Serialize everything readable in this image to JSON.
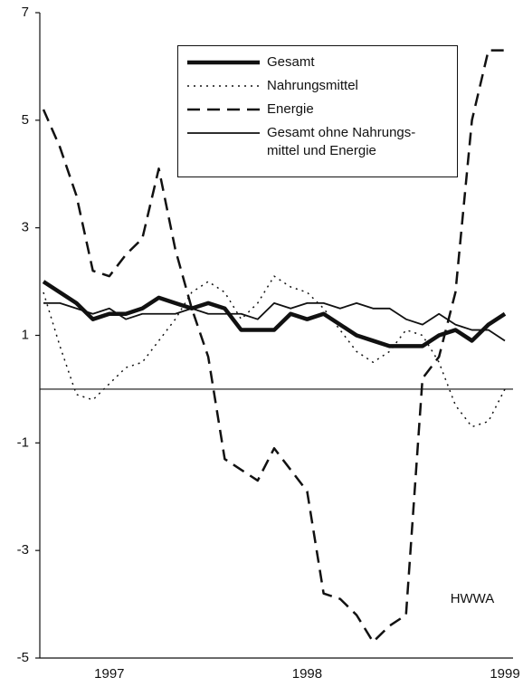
{
  "chart_data": {
    "type": "line",
    "categories": [
      null,
      null,
      null,
      null,
      "1997",
      null,
      null,
      null,
      null,
      null,
      null,
      null,
      null,
      null,
      null,
      null,
      "1998",
      null,
      null,
      null,
      null,
      null,
      null,
      null,
      null,
      null,
      null,
      null,
      "1999"
    ],
    "series": [
      {
        "name": "Gesamt",
        "color": "#111111",
        "width": 4.5,
        "style": "solid",
        "values": [
          2.0,
          1.8,
          1.6,
          1.3,
          1.4,
          1.4,
          1.5,
          1.7,
          1.6,
          1.5,
          1.6,
          1.5,
          1.1,
          1.1,
          1.1,
          1.4,
          1.3,
          1.4,
          1.2,
          1.0,
          0.9,
          0.8,
          0.8,
          0.8,
          1.0,
          1.1,
          0.9,
          1.2,
          1.4
        ]
      },
      {
        "name": "Nahrungsmittel",
        "color": "#111111",
        "width": 1.5,
        "style": "dotted",
        "values": [
          1.8,
          0.8,
          -0.1,
          -0.2,
          0.1,
          0.4,
          0.5,
          0.9,
          1.3,
          1.8,
          2.0,
          1.8,
          1.3,
          1.6,
          2.1,
          1.9,
          1.8,
          1.5,
          1.1,
          0.7,
          0.5,
          0.7,
          1.1,
          1.0,
          0.5,
          -0.3,
          -0.7,
          -0.6,
          0.0
        ]
      },
      {
        "name": "Energie",
        "color": "#111111",
        "width": 2.5,
        "style": "dashed",
        "values": [
          5.2,
          4.5,
          3.6,
          2.2,
          2.1,
          2.5,
          2.8,
          4.1,
          2.6,
          1.5,
          0.6,
          -1.3,
          -1.5,
          -1.7,
          -1.1,
          -1.5,
          -1.9,
          -3.8,
          -3.9,
          -4.2,
          -4.7,
          -4.4,
          -4.2,
          0.2,
          0.6,
          1.8,
          5.0,
          6.3,
          6.3
        ]
      },
      {
        "name": "Gesamt ohne Nahrungs-\nmittel und Energie",
        "color": "#111111",
        "width": 1.8,
        "style": "solid",
        "values": [
          1.6,
          1.6,
          1.5,
          1.4,
          1.5,
          1.3,
          1.4,
          1.4,
          1.4,
          1.5,
          1.4,
          1.4,
          1.4,
          1.3,
          1.6,
          1.5,
          1.6,
          1.6,
          1.5,
          1.6,
          1.5,
          1.5,
          1.3,
          1.2,
          1.4,
          1.2,
          1.1,
          1.1,
          0.9
        ]
      }
    ],
    "ylim": [
      -5,
      7
    ],
    "yticks": [
      -5,
      -3,
      -1,
      1,
      3,
      5,
      7
    ],
    "annotation": "HWWA"
  }
}
